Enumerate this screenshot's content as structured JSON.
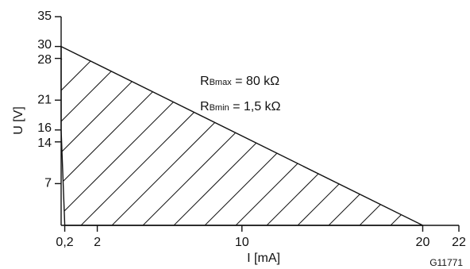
{
  "chart_data": {
    "type": "area",
    "xlabel": "I [mA]",
    "ylabel": "U [V]",
    "xlim": [
      0,
      22
    ],
    "ylim": [
      0,
      35
    ],
    "x_ticks": [
      {
        "value": 0.2,
        "label": "0,2"
      },
      {
        "value": 2,
        "label": "2"
      },
      {
        "value": 10,
        "label": "10"
      },
      {
        "value": 20,
        "label": "20"
      },
      {
        "value": 22,
        "label": "22"
      }
    ],
    "y_ticks": [
      {
        "value": 7,
        "label": "7"
      },
      {
        "value": 14,
        "label": "14"
      },
      {
        "value": 16,
        "label": "16"
      },
      {
        "value": 21,
        "label": "21"
      },
      {
        "value": 28,
        "label": "28"
      },
      {
        "value": 30,
        "label": "30"
      },
      {
        "value": 35,
        "label": "35"
      }
    ],
    "region": {
      "fill": "hatched",
      "x": [
        0,
        0,
        0.2,
        20
      ],
      "y": [
        30,
        16,
        0,
        0
      ]
    },
    "annotations": [
      {
        "main": "R",
        "sub": "Bmax",
        "rest": " = 80 kΩ"
      },
      {
        "main": "R",
        "sub": "Bmin",
        "rest": " = 1,5 kΩ"
      }
    ],
    "figure_code": "G11771",
    "grid": false,
    "colors": {
      "line": "#111111",
      "background": "#ffffff"
    }
  }
}
